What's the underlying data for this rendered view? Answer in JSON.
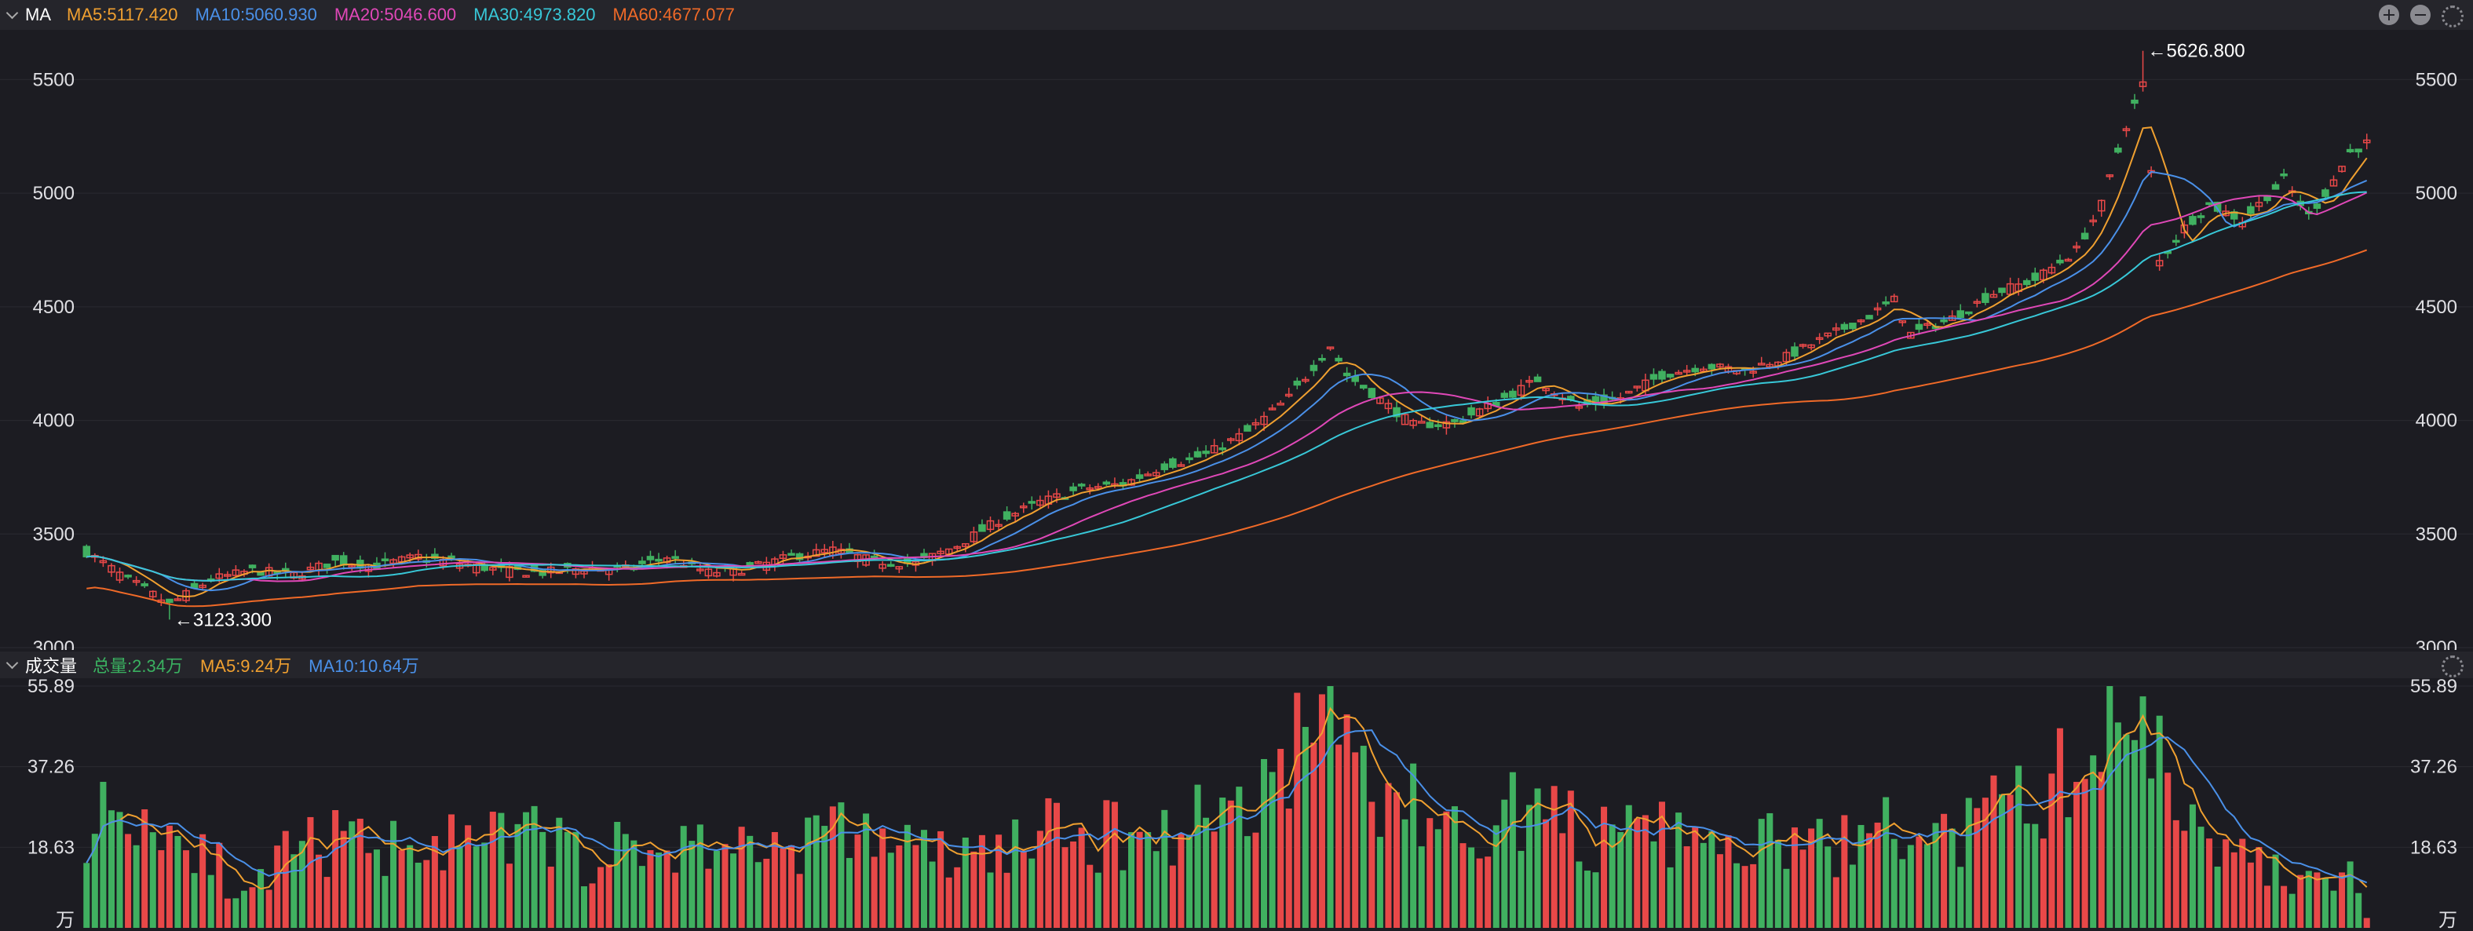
{
  "price_header": {
    "indicator": "MA",
    "legends": [
      {
        "label": "MA5:5117.420",
        "color": "#f0a030"
      },
      {
        "label": "MA10:5060.930",
        "color": "#4a90e8"
      },
      {
        "label": "MA20:5046.600",
        "color": "#e048b8"
      },
      {
        "label": "MA30:4973.820",
        "color": "#38c8d8"
      },
      {
        "label": "MA60:4677.077",
        "color": "#f06a28"
      }
    ]
  },
  "volume_header": {
    "indicator": "成交量",
    "legends": [
      {
        "label": "总量:2.34万",
        "color": "#3ab060"
      },
      {
        "label": "MA5:9.24万",
        "color": "#f0a030"
      },
      {
        "label": "MA10:10.64万",
        "color": "#4a90e8"
      }
    ]
  },
  "colors": {
    "up": "#e84848",
    "down": "#40b060",
    "background": "#1c1c22"
  },
  "icons": [
    "chevron-down-icon",
    "plus-icon",
    "minus-icon",
    "gear-icon"
  ],
  "chart_data": [
    {
      "type": "candlestick",
      "ylim": [
        3000,
        5650
      ],
      "yticks": [
        3000,
        3500,
        4000,
        4500,
        5000,
        5500
      ],
      "ytick_labels": [
        "3000",
        "3500",
        "4000",
        "4500",
        "5000",
        "5500"
      ],
      "annotations": [
        {
          "text": "←5626.800",
          "value": 5626.8
        },
        {
          "text": "←3123.300",
          "value": 3123.3
        }
      ],
      "anchors": [
        [
          0,
          3420
        ],
        [
          5,
          3300
        ],
        [
          10,
          3190
        ],
        [
          15,
          3300
        ],
        [
          20,
          3340
        ],
        [
          25,
          3320
        ],
        [
          30,
          3380
        ],
        [
          35,
          3360
        ],
        [
          40,
          3400
        ],
        [
          45,
          3370
        ],
        [
          50,
          3340
        ],
        [
          55,
          3330
        ],
        [
          60,
          3350
        ],
        [
          65,
          3345
        ],
        [
          70,
          3400
        ],
        [
          75,
          3330
        ],
        [
          80,
          3350
        ],
        [
          85,
          3400
        ],
        [
          90,
          3430
        ],
        [
          95,
          3380
        ],
        [
          100,
          3370
        ],
        [
          105,
          3450
        ],
        [
          110,
          3560
        ],
        [
          115,
          3640
        ],
        [
          120,
          3700
        ],
        [
          125,
          3720
        ],
        [
          130,
          3800
        ],
        [
          135,
          3850
        ],
        [
          140,
          3950
        ],
        [
          145,
          4100
        ],
        [
          150,
          4330
        ],
        [
          152,
          4200
        ],
        [
          155,
          4120
        ],
        [
          160,
          3980
        ],
        [
          165,
          3990
        ],
        [
          170,
          4080
        ],
        [
          175,
          4180
        ],
        [
          180,
          4060
        ],
        [
          185,
          4100
        ],
        [
          190,
          4200
        ],
        [
          195,
          4240
        ],
        [
          200,
          4220
        ],
        [
          205,
          4280
        ],
        [
          210,
          4370
        ],
        [
          215,
          4460
        ],
        [
          218,
          4530
        ],
        [
          220,
          4380
        ],
        [
          225,
          4450
        ],
        [
          230,
          4560
        ],
        [
          235,
          4620
        ],
        [
          240,
          4750
        ],
        [
          243,
          4950
        ],
        [
          246,
          5300
        ],
        [
          248,
          5480
        ],
        [
          250,
          4700
        ],
        [
          253,
          4850
        ],
        [
          256,
          4950
        ],
        [
          260,
          4880
        ],
        [
          265,
          5060
        ],
        [
          268,
          4900
        ],
        [
          270,
          5000
        ],
        [
          273,
          5180
        ],
        [
          275,
          5220
        ]
      ],
      "n_candles": 276,
      "lows": [
        {
          "index": 10,
          "value": 3123.3
        }
      ],
      "highs": [
        {
          "index": 248,
          "value": 5626.8
        }
      ]
    },
    {
      "type": "bar",
      "ylim": [
        0,
        55.89
      ],
      "yticks": [
        0,
        18.63,
        37.26,
        55.89
      ],
      "ytick_labels": [
        "万",
        "18.63",
        "37.26",
        "55.89"
      ],
      "unit": "万",
      "n_bars": 276,
      "anchors": [
        [
          0,
          25
        ],
        [
          5,
          28
        ],
        [
          10,
          22
        ],
        [
          15,
          20
        ],
        [
          18,
          5
        ],
        [
          20,
          8
        ],
        [
          25,
          18
        ],
        [
          30,
          20
        ],
        [
          35,
          18
        ],
        [
          40,
          22
        ],
        [
          45,
          18
        ],
        [
          50,
          20
        ],
        [
          55,
          22
        ],
        [
          60,
          16
        ],
        [
          65,
          18
        ],
        [
          70,
          18
        ],
        [
          75,
          20
        ],
        [
          80,
          18
        ],
        [
          85,
          20
        ],
        [
          90,
          22
        ],
        [
          95,
          22
        ],
        [
          100,
          18
        ],
        [
          105,
          16
        ],
        [
          110,
          18
        ],
        [
          115,
          22
        ],
        [
          120,
          20
        ],
        [
          125,
          22
        ],
        [
          130,
          22
        ],
        [
          135,
          26
        ],
        [
          140,
          30
        ],
        [
          145,
          40
        ],
        [
          150,
          50
        ],
        [
          152,
          45
        ],
        [
          155,
          32
        ],
        [
          160,
          28
        ],
        [
          165,
          22
        ],
        [
          170,
          26
        ],
        [
          175,
          28
        ],
        [
          180,
          22
        ],
        [
          185,
          20
        ],
        [
          190,
          22
        ],
        [
          195,
          18
        ],
        [
          200,
          18
        ],
        [
          205,
          20
        ],
        [
          210,
          18
        ],
        [
          215,
          22
        ],
        [
          220,
          22
        ],
        [
          225,
          20
        ],
        [
          230,
          26
        ],
        [
          235,
          30
        ],
        [
          240,
          38
        ],
        [
          244,
          46
        ],
        [
          248,
          52
        ],
        [
          250,
          40
        ],
        [
          253,
          30
        ],
        [
          256,
          24
        ],
        [
          260,
          16
        ],
        [
          265,
          12
        ],
        [
          270,
          10
        ],
        [
          273,
          12
        ],
        [
          275,
          3
        ]
      ]
    }
  ]
}
